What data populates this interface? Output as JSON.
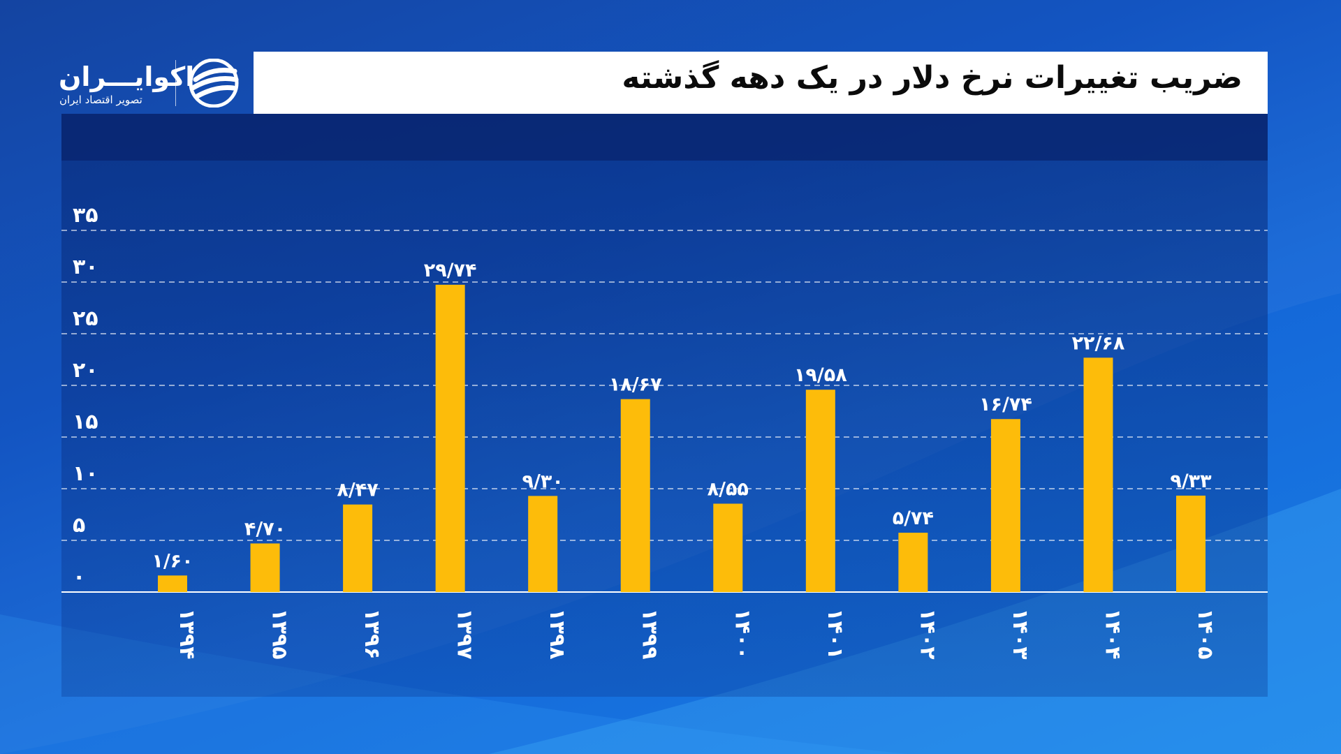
{
  "header": {
    "title": "ضریب تغییرات نرخ دلار در یک دهه گذشته"
  },
  "logo": {
    "name": "اکوایـــران",
    "subtitle": "تصویر اقتصاد ایران"
  },
  "colors": {
    "bar": "#FDBC0A",
    "text": "#FFFFFF",
    "background": "#0B4FC0"
  },
  "chart_data": {
    "type": "bar",
    "title": "ضریب تغییرات نرخ دلار در یک دهه گذشته",
    "categories": [
      "۱۳۹۴",
      "۱۳۹۵",
      "۱۳۹۶",
      "۱۳۹۷",
      "۱۳۹۸",
      "۱۳۹۹",
      "۱۴۰۰",
      "۱۴۰۱",
      "۱۴۰۲",
      "۱۴۰۳",
      "۱۴۰۴",
      "۱۴۰۵"
    ],
    "values": [
      1.6,
      4.7,
      8.47,
      29.74,
      9.3,
      18.67,
      8.55,
      19.58,
      5.74,
      16.74,
      22.68,
      9.33
    ],
    "value_labels": [
      "۱/۶۰",
      "۴/۷۰",
      "۸/۴۷",
      "۲۹/۷۴",
      "۹/۳۰",
      "۱۸/۶۷",
      "۸/۵۵",
      "۱۹/۵۸",
      "۵/۷۴",
      "۱۶/۷۴",
      "۲۲/۶۸",
      "۹/۳۳"
    ],
    "y_ticks": [
      0,
      5,
      10,
      15,
      20,
      25,
      30,
      35
    ],
    "y_tick_labels": [
      "۰",
      "۵",
      "۱۰",
      "۱۵",
      "۲۰",
      "۲۵",
      "۳۰",
      "۳۵"
    ],
    "ylim": [
      0,
      35
    ],
    "grid": true,
    "xlabel": "",
    "ylabel": ""
  }
}
